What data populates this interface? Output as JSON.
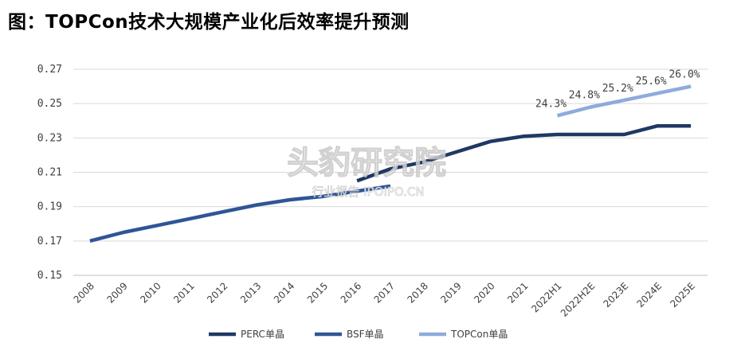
{
  "title": "图：TOPCon技术大规模产业化后效率提升预测",
  "watermark": {
    "main": "头豹研究院",
    "sub": "行业报告 IPOIPO.CN"
  },
  "chart_data": {
    "type": "line",
    "title": "图：TOPCon技术大规模产业化后效率提升预测",
    "xlabel": "",
    "ylabel": "",
    "ylim": [
      0.15,
      0.27
    ],
    "yticks": [
      "0.27",
      "0.25",
      "0.23",
      "0.21",
      "0.19",
      "0.17",
      "0.15"
    ],
    "ytick_values": [
      0.27,
      0.25,
      0.23,
      0.21,
      0.19,
      0.17,
      0.15
    ],
    "categories": [
      "2008",
      "2009",
      "2010",
      "2011",
      "2012",
      "2013",
      "2014",
      "2015",
      "2016",
      "2017",
      "2018",
      "2019",
      "2020",
      "2021",
      "2022H1",
      "2022H2E",
      "2023E",
      "2024E",
      "2025E"
    ],
    "grid": true,
    "legend_position": "bottom",
    "series": [
      {
        "name": "PERC单晶",
        "color": "#1f3864",
        "values": [
          null,
          null,
          null,
          null,
          null,
          null,
          null,
          null,
          0.205,
          0.212,
          0.216,
          0.222,
          0.228,
          0.231,
          0.232,
          0.232,
          0.232,
          0.237,
          0.237
        ],
        "labels": []
      },
      {
        "name": "BSF单晶",
        "color": "#2f5597",
        "values": [
          0.17,
          0.175,
          0.179,
          0.183,
          0.187,
          0.191,
          0.194,
          0.196,
          0.199,
          0.202,
          null,
          null,
          null,
          null,
          null,
          null,
          null,
          null,
          null
        ],
        "labels": []
      },
      {
        "name": "TOPCon单晶",
        "color": "#8faadc",
        "values": [
          null,
          null,
          null,
          null,
          null,
          null,
          null,
          null,
          null,
          null,
          null,
          null,
          null,
          null,
          0.243,
          0.248,
          0.252,
          0.256,
          0.26
        ],
        "labels": [
          "24.3%",
          "24.8%",
          "25.2%",
          "25.6%",
          "26.0%"
        ]
      }
    ]
  }
}
